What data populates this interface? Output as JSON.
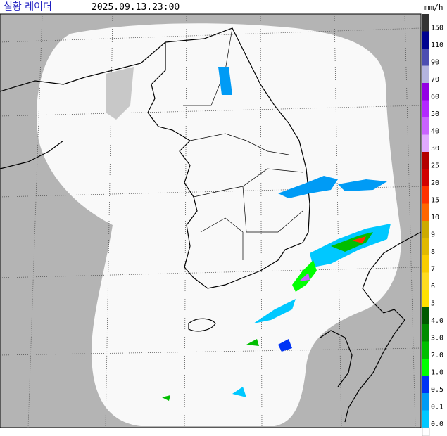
{
  "header": {
    "title": "실황 레이더",
    "time": "2025.09.13.23:00"
  },
  "legend": {
    "unit": "mm/h",
    "items": [
      {
        "label": "150",
        "color": "#333333"
      },
      {
        "label": "110",
        "color": "#000390"
      },
      {
        "label": "90",
        "color": "#4c4eb1"
      },
      {
        "label": "70",
        "color": "#b3b4de"
      },
      {
        "label": "60",
        "color": "#9300e4"
      },
      {
        "label": "50",
        "color": "#b329ff"
      },
      {
        "label": "40",
        "color": "#c963ff"
      },
      {
        "label": "30",
        "color": "#e0a9ff"
      },
      {
        "label": "25",
        "color": "#b40000"
      },
      {
        "label": "20",
        "color": "#d20000"
      },
      {
        "label": "15",
        "color": "#ff3200"
      },
      {
        "label": "10",
        "color": "#ff6600"
      },
      {
        "label": "9",
        "color": "#ccaa00"
      },
      {
        "label": "8",
        "color": "#e0b900"
      },
      {
        "label": "7",
        "color": "#f9cd00"
      },
      {
        "label": "6",
        "color": "#ffdc1f"
      },
      {
        "label": "5",
        "color": "#ffe100"
      },
      {
        "label": "4.0",
        "color": "#005a00"
      },
      {
        "label": "3.0",
        "color": "#008c00"
      },
      {
        "label": "2.0",
        "color": "#00be00"
      },
      {
        "label": "1.0",
        "color": "#00ff00"
      },
      {
        "label": "0.5",
        "color": "#0033f5"
      },
      {
        "label": "0.1",
        "color": "#009bf5"
      },
      {
        "label": "0.0",
        "color": "#00c8ff"
      }
    ]
  }
}
